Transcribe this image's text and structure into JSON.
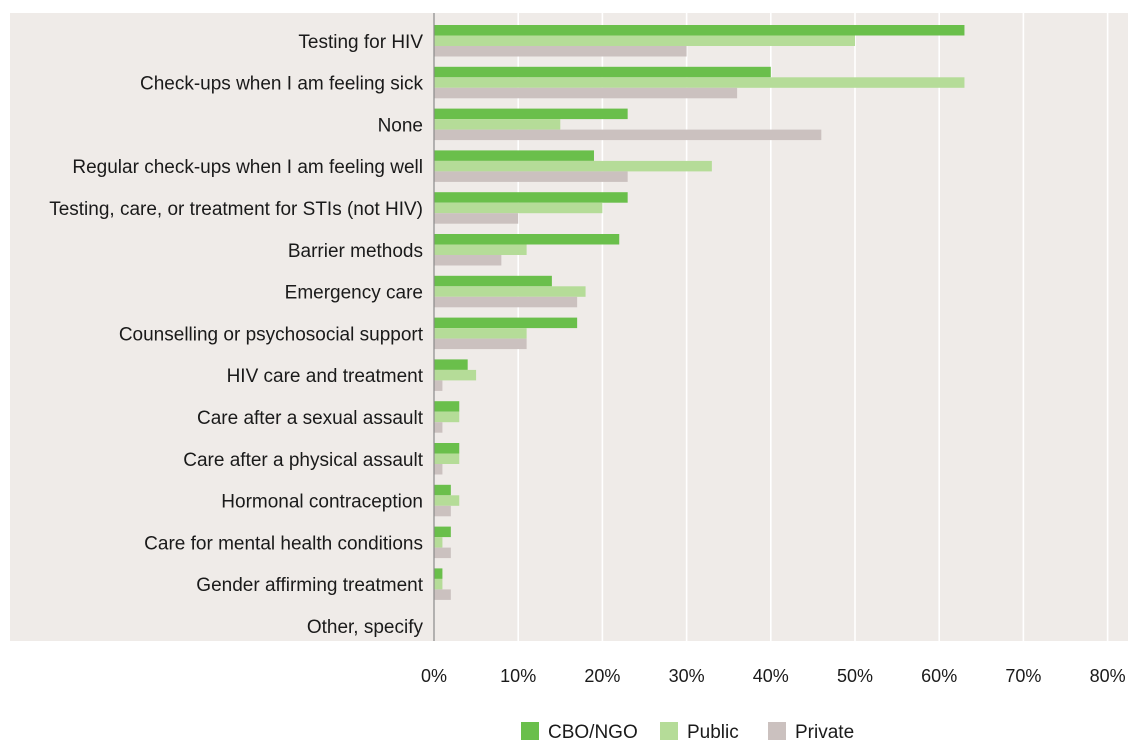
{
  "chart_data": {
    "type": "bar",
    "orientation": "horizontal",
    "categories": [
      "Testing for HIV",
      "Check-ups when I am feeling sick",
      "None",
      "Regular check-ups when I am feeling well",
      "Testing, care, or treatment for STIs (not HIV)",
      "Barrier methods",
      "Emergency care",
      "Counselling or psychosocial support",
      "HIV care and treatment",
      "Care after a sexual assault",
      "Care after a physical assault",
      "Hormonal contraception",
      "Care for mental health conditions",
      "Gender affirming treatment",
      "Other, specify"
    ],
    "series": [
      {
        "name": "CBO/NGO",
        "color": "#6abf4b",
        "values": [
          63,
          40,
          23,
          19,
          23,
          22,
          14,
          17,
          4,
          3,
          3,
          2,
          2,
          1,
          0
        ]
      },
      {
        "name": "Public",
        "color": "#b5dc98",
        "values": [
          50,
          63,
          15,
          33,
          20,
          11,
          18,
          11,
          5,
          3,
          3,
          3,
          1,
          1,
          0
        ]
      },
      {
        "name": "Private",
        "color": "#cbc1bf",
        "values": [
          30,
          36,
          46,
          23,
          10,
          8,
          17,
          11,
          1,
          1,
          1,
          2,
          2,
          2,
          0
        ]
      }
    ],
    "xlim": [
      0,
      80
    ],
    "xticks": [
      "0%",
      "10%",
      "20%",
      "30%",
      "40%",
      "50%",
      "60%",
      "70%",
      "80%"
    ],
    "grid": "vertical",
    "legend": "bottom-center",
    "plot_background": "#efebe8",
    "title": "",
    "xlabel": "",
    "ylabel": ""
  }
}
